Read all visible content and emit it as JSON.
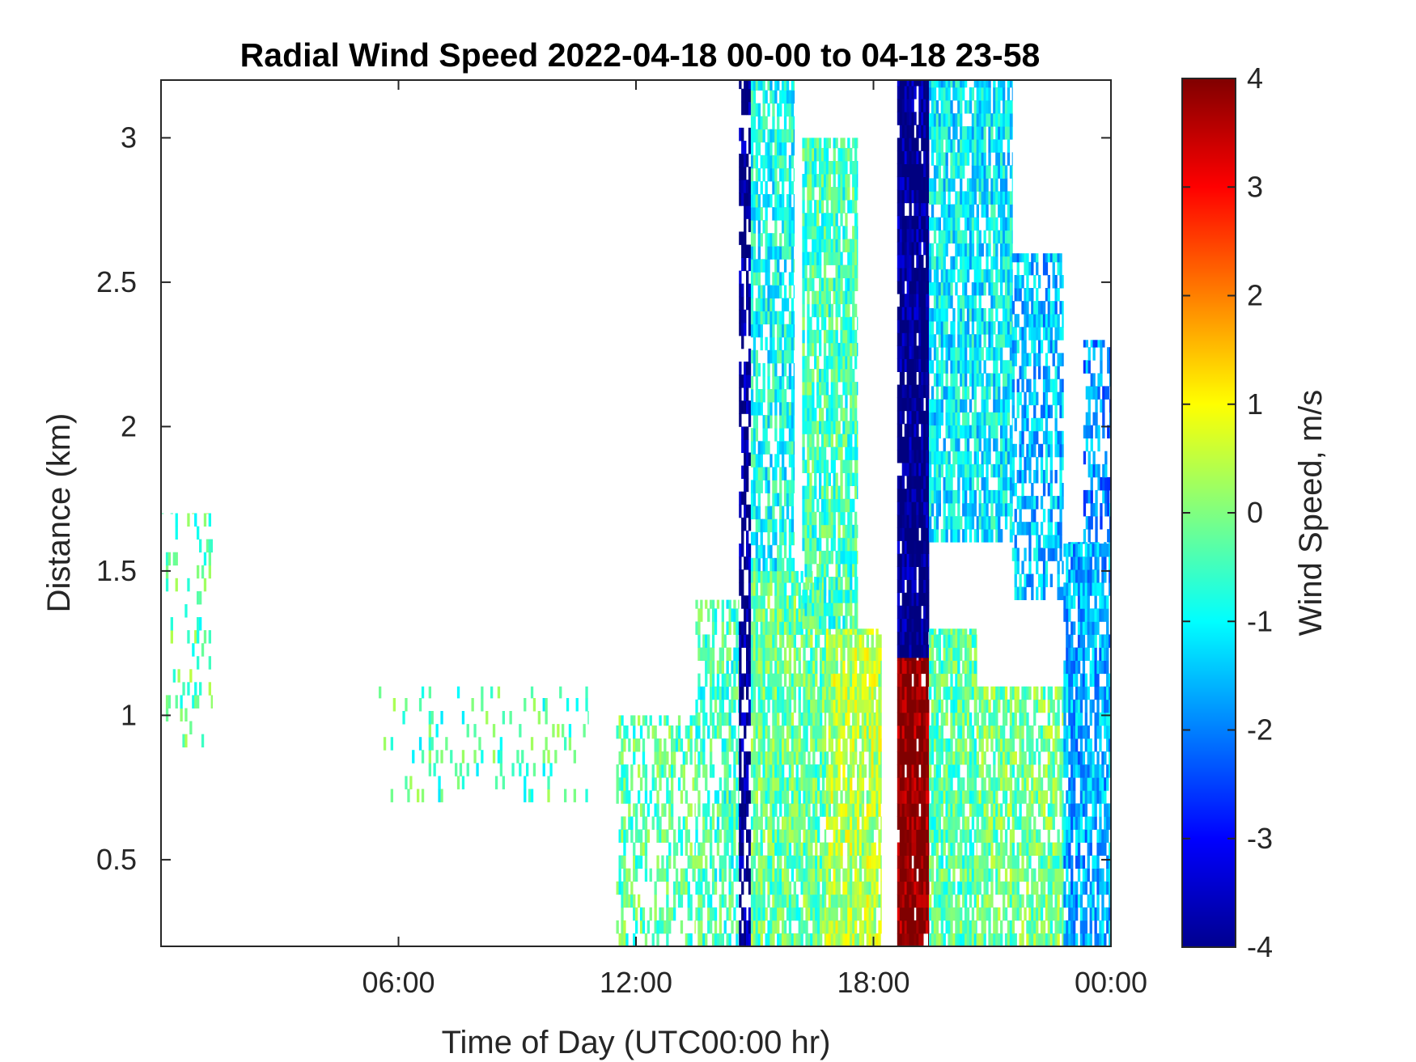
{
  "chart_data": {
    "type": "heatmap",
    "title": "Radial Wind Speed 2022-04-18 00-00 to 04-18 23-58",
    "xlabel": "Time of Day (UTC00:00 hr)",
    "ylabel": "Distance (km)",
    "x_unit": "hours UTC",
    "y_unit": "km",
    "xlim": [
      0,
      24
    ],
    "ylim": [
      0.2,
      3.2
    ],
    "x_ticks": [
      {
        "value": 6,
        "label": "06:00"
      },
      {
        "value": 12,
        "label": "12:00"
      },
      {
        "value": 18,
        "label": "18:00"
      },
      {
        "value": 24,
        "label": "00:00"
      }
    ],
    "y_ticks": [
      {
        "value": 0.5,
        "label": "0.5"
      },
      {
        "value": 1,
        "label": "1"
      },
      {
        "value": 1.5,
        "label": "1.5"
      },
      {
        "value": 2,
        "label": "2"
      },
      {
        "value": 2.5,
        "label": "2.5"
      },
      {
        "value": 3,
        "label": "3"
      }
    ],
    "colorbar": {
      "label": "Wind Speed, m/s",
      "colormap": "jet",
      "range": [
        -4,
        4
      ],
      "ticks": [
        {
          "value": 4,
          "label": "4"
        },
        {
          "value": 3,
          "label": "3"
        },
        {
          "value": 2,
          "label": "2"
        },
        {
          "value": 1,
          "label": "1"
        },
        {
          "value": 0,
          "label": "0"
        },
        {
          "value": -1,
          "label": "-1"
        },
        {
          "value": -2,
          "label": "-2"
        },
        {
          "value": -3,
          "label": "-3"
        },
        {
          "value": -4,
          "label": "-4"
        }
      ]
    },
    "regions": [
      {
        "x": [
          0.0,
          1.3
        ],
        "y": [
          0.8,
          1.7
        ],
        "value": -0.3,
        "density": 0.15
      },
      {
        "x": [
          5.5,
          10.8
        ],
        "y": [
          0.7,
          1.1
        ],
        "value": -0.4,
        "density": 0.12
      },
      {
        "x": [
          11.5,
          13.5
        ],
        "y": [
          0.2,
          1.0
        ],
        "value": -0.3,
        "density": 0.45
      },
      {
        "x": [
          13.5,
          14.6
        ],
        "y": [
          0.2,
          1.4
        ],
        "value": -0.5,
        "density": 0.6
      },
      {
        "x": [
          14.6,
          14.9
        ],
        "y": [
          0.2,
          3.2
        ],
        "value": -4.0,
        "density": 0.65
      },
      {
        "x": [
          14.9,
          16.8
        ],
        "y": [
          0.2,
          1.5
        ],
        "value": -0.2,
        "density": 0.85
      },
      {
        "x": [
          14.9,
          16.0
        ],
        "y": [
          1.5,
          3.2
        ],
        "value": -0.9,
        "density": 0.7
      },
      {
        "x": [
          16.8,
          18.2
        ],
        "y": [
          0.2,
          1.3
        ],
        "value": 0.4,
        "density": 0.85
      },
      {
        "x": [
          16.2,
          17.6
        ],
        "y": [
          1.3,
          3.0
        ],
        "value": -0.5,
        "density": 0.8
      },
      {
        "x": [
          18.6,
          19.4
        ],
        "y": [
          0.2,
          1.2
        ],
        "value": 4.0,
        "density": 0.95
      },
      {
        "x": [
          18.6,
          19.4
        ],
        "y": [
          1.2,
          3.2
        ],
        "value": -4.0,
        "density": 0.95
      },
      {
        "x": [
          19.4,
          20.6
        ],
        "y": [
          0.2,
          1.3
        ],
        "value": -0.3,
        "density": 0.85
      },
      {
        "x": [
          19.4,
          21.5
        ],
        "y": [
          1.6,
          3.2
        ],
        "value": -1.1,
        "density": 0.8
      },
      {
        "x": [
          20.6,
          22.8
        ],
        "y": [
          0.2,
          1.1
        ],
        "value": -0.1,
        "density": 0.75
      },
      {
        "x": [
          21.5,
          22.8
        ],
        "y": [
          1.4,
          2.6
        ],
        "value": -1.5,
        "density": 0.6
      },
      {
        "x": [
          22.8,
          24.0
        ],
        "y": [
          0.2,
          1.6
        ],
        "value": -1.6,
        "density": 0.75
      },
      {
        "x": [
          23.3,
          24.0
        ],
        "y": [
          1.6,
          2.3
        ],
        "value": -1.9,
        "density": 0.55
      }
    ]
  }
}
